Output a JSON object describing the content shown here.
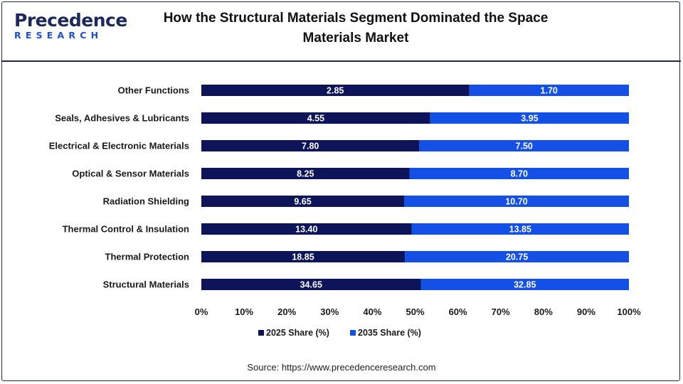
{
  "header": {
    "logo_main": "Precedence",
    "logo_sub": "RESEARCH",
    "title_line1": "How the Structural Materials Segment Dominated the Space",
    "title_line2": "Materials Market"
  },
  "source": "Source: https://www.precedenceresearch.com",
  "colors": {
    "series_2025": "#0d1459",
    "series_2035": "#1450e6",
    "frame": "#1f2a44"
  },
  "chart_data": {
    "type": "bar",
    "orientation": "horizontal",
    "stacked": "percent",
    "categories": [
      "Other Functions",
      "Seals, Adhesives & Lubricants",
      "Electrical & Electronic Materials",
      "Optical & Sensor Materials",
      "Radiation Shielding",
      "Thermal Control & Insulation",
      "Thermal Protection",
      "Structural Materials"
    ],
    "series": [
      {
        "name": "2025 Share (%)",
        "values": [
          2.85,
          4.55,
          7.8,
          8.25,
          9.65,
          13.4,
          18.85,
          34.65
        ],
        "labels": [
          "2.85",
          "4.55",
          "7.80",
          "8.25",
          "9.65",
          "13.40",
          "18.85",
          "34.65"
        ]
      },
      {
        "name": "2035 Share (%)",
        "values": [
          1.7,
          3.95,
          7.5,
          8.7,
          10.7,
          13.85,
          20.75,
          32.85
        ],
        "labels": [
          "1.70",
          "3.95",
          "7.50",
          "8.70",
          "10.70",
          "13.85",
          "20.75",
          "32.85"
        ]
      }
    ],
    "x_ticks": [
      "0%",
      "10%",
      "20%",
      "30%",
      "40%",
      "50%",
      "60%",
      "70%",
      "80%",
      "90%",
      "100%"
    ],
    "xlim": [
      0,
      100
    ],
    "grid": false,
    "legend": "bottom"
  }
}
